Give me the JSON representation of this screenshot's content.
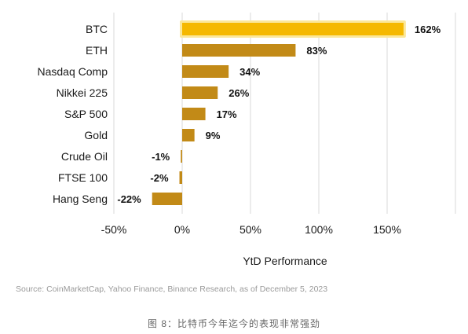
{
  "chart_data": {
    "type": "bar",
    "orientation": "horizontal",
    "categories": [
      "BTC",
      "ETH",
      "Nasdaq Comp",
      "Nikkei 225",
      "S&P 500",
      "Gold",
      "Crude Oil",
      "FTSE 100",
      "Hang Seng"
    ],
    "values": [
      162,
      83,
      34,
      26,
      17,
      9,
      -1,
      -2,
      -22
    ],
    "value_labels": [
      "162%",
      "83%",
      "34%",
      "26%",
      "17%",
      "9%",
      "-1%",
      "-2%",
      "-22%"
    ],
    "highlight_category": "BTC",
    "xlabel": "YtD Performance",
    "xlim": [
      -50,
      200
    ],
    "x_ticks": [
      -50,
      0,
      50,
      100,
      150
    ],
    "x_tick_labels": [
      "-50%",
      "0%",
      "50%",
      "100%",
      "150%"
    ],
    "grid": "vertical",
    "colors": {
      "bar": "#c28a17",
      "highlight_bar": "#f5b800",
      "highlight_glow": "#fbe79a",
      "grid": "#d9d9d9"
    }
  },
  "source": "Source: CoinMarketCap, Yahoo Finance, Binance Research, as of December 5, 2023",
  "caption": "图 8：比特币今年迄今的表现非常强劲"
}
